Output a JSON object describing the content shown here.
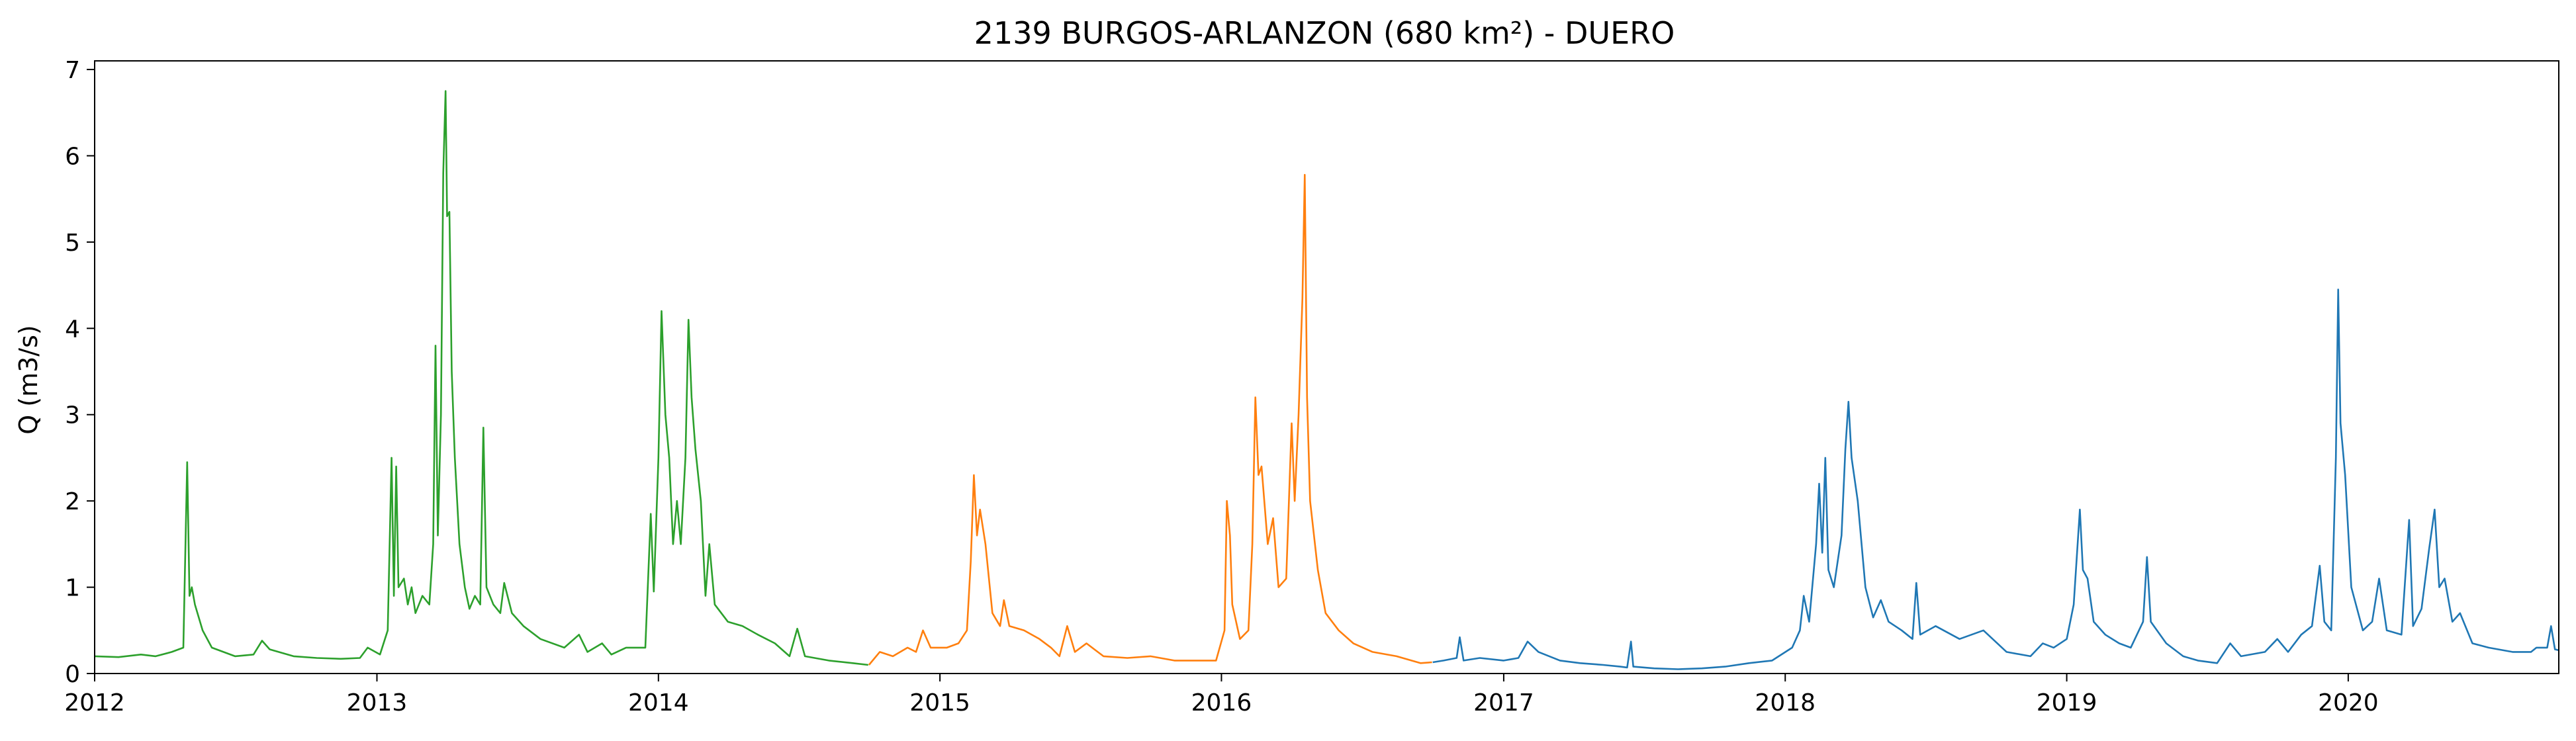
{
  "chart_data": {
    "type": "line",
    "title": "2139 BURGOS-ARLANZON (680 km²) - DUERO",
    "xlabel": "",
    "ylabel": "Q (m3/s)",
    "xlim": [
      "2012-01-01",
      "2020-09-30"
    ],
    "ylim": [
      0,
      7.1
    ],
    "grid": false,
    "x_ticks": [
      "2012",
      "2013",
      "2014",
      "2015",
      "2016",
      "2017",
      "2018",
      "2019",
      "2020"
    ],
    "y_ticks": [
      "0",
      "1",
      "2",
      "3",
      "4",
      "5",
      "6",
      "7"
    ],
    "series": [
      {
        "color": "#2ca02c",
        "points": [
          [
            "2012-01-01",
            0.2
          ],
          [
            "2012-02-01",
            0.19
          ],
          [
            "2012-03-01",
            0.22
          ],
          [
            "2012-03-20",
            0.2
          ],
          [
            "2012-04-10",
            0.25
          ],
          [
            "2012-04-25",
            0.3
          ],
          [
            "2012-04-30",
            2.45
          ],
          [
            "2012-05-03",
            0.9
          ],
          [
            "2012-05-06",
            1.0
          ],
          [
            "2012-05-10",
            0.8
          ],
          [
            "2012-05-20",
            0.5
          ],
          [
            "2012-06-01",
            0.3
          ],
          [
            "2012-07-01",
            0.2
          ],
          [
            "2012-07-25",
            0.22
          ],
          [
            "2012-08-05",
            0.38
          ],
          [
            "2012-08-15",
            0.28
          ],
          [
            "2012-09-15",
            0.2
          ],
          [
            "2012-10-15",
            0.18
          ],
          [
            "2012-11-15",
            0.17
          ],
          [
            "2012-12-10",
            0.18
          ],
          [
            "2012-12-20",
            0.3
          ],
          [
            "2013-01-05",
            0.22
          ],
          [
            "2013-01-15",
            0.5
          ],
          [
            "2013-01-20",
            2.5
          ],
          [
            "2013-01-23",
            0.9
          ],
          [
            "2013-01-26",
            2.4
          ],
          [
            "2013-01-29",
            1.0
          ],
          [
            "2013-02-05",
            1.1
          ],
          [
            "2013-02-10",
            0.8
          ],
          [
            "2013-02-15",
            1.0
          ],
          [
            "2013-02-20",
            0.7
          ],
          [
            "2013-03-01",
            0.9
          ],
          [
            "2013-03-10",
            0.8
          ],
          [
            "2013-03-15",
            1.5
          ],
          [
            "2013-03-18",
            3.8
          ],
          [
            "2013-03-21",
            1.6
          ],
          [
            "2013-03-25",
            3.0
          ],
          [
            "2013-03-28",
            5.8
          ],
          [
            "2013-03-31",
            6.75
          ],
          [
            "2013-04-02",
            5.3
          ],
          [
            "2013-04-05",
            5.35
          ],
          [
            "2013-04-08",
            3.5
          ],
          [
            "2013-04-12",
            2.5
          ],
          [
            "2013-04-18",
            1.5
          ],
          [
            "2013-04-25",
            1.0
          ],
          [
            "2013-05-01",
            0.75
          ],
          [
            "2013-05-08",
            0.9
          ],
          [
            "2013-05-15",
            0.8
          ],
          [
            "2013-05-19",
            2.85
          ],
          [
            "2013-05-23",
            1.0
          ],
          [
            "2013-06-01",
            0.8
          ],
          [
            "2013-06-10",
            0.7
          ],
          [
            "2013-06-15",
            1.05
          ],
          [
            "2013-06-25",
            0.7
          ],
          [
            "2013-07-10",
            0.55
          ],
          [
            "2013-08-01",
            0.4
          ],
          [
            "2013-09-01",
            0.3
          ],
          [
            "2013-09-20",
            0.45
          ],
          [
            "2013-10-01",
            0.25
          ],
          [
            "2013-10-20",
            0.35
          ],
          [
            "2013-11-01",
            0.22
          ],
          [
            "2013-11-20",
            0.3
          ],
          [
            "2013-12-15",
            0.3
          ],
          [
            "2013-12-22",
            1.85
          ],
          [
            "2013-12-26",
            0.95
          ],
          [
            "2014-01-01",
            2.5
          ],
          [
            "2014-01-05",
            4.2
          ],
          [
            "2014-01-10",
            3.0
          ],
          [
            "2014-01-15",
            2.5
          ],
          [
            "2014-01-20",
            1.5
          ],
          [
            "2014-01-25",
            2.0
          ],
          [
            "2014-01-30",
            1.5
          ],
          [
            "2014-02-05",
            2.5
          ],
          [
            "2014-02-09",
            4.1
          ],
          [
            "2014-02-13",
            3.2
          ],
          [
            "2014-02-18",
            2.6
          ],
          [
            "2014-02-25",
            2.0
          ],
          [
            "2014-03-03",
            0.9
          ],
          [
            "2014-03-08",
            1.5
          ],
          [
            "2014-03-15",
            0.8
          ],
          [
            "2014-04-01",
            0.6
          ],
          [
            "2014-04-20",
            0.55
          ],
          [
            "2014-05-10",
            0.45
          ],
          [
            "2014-06-01",
            0.35
          ],
          [
            "2014-06-20",
            0.2
          ],
          [
            "2014-06-30",
            0.52
          ],
          [
            "2014-07-10",
            0.2
          ],
          [
            "2014-08-10",
            0.15
          ],
          [
            "2014-09-10",
            0.12
          ],
          [
            "2014-09-30",
            0.1
          ]
        ]
      },
      {
        "color": "#ff7f0e",
        "points": [
          [
            "2014-10-01",
            0.1
          ],
          [
            "2014-10-15",
            0.25
          ],
          [
            "2014-11-01",
            0.2
          ],
          [
            "2014-11-20",
            0.3
          ],
          [
            "2014-12-01",
            0.25
          ],
          [
            "2014-12-10",
            0.5
          ],
          [
            "2014-12-20",
            0.3
          ],
          [
            "2015-01-10",
            0.3
          ],
          [
            "2015-01-25",
            0.35
          ],
          [
            "2015-02-05",
            0.5
          ],
          [
            "2015-02-10",
            1.3
          ],
          [
            "2015-02-14",
            2.3
          ],
          [
            "2015-02-18",
            1.6
          ],
          [
            "2015-02-22",
            1.9
          ],
          [
            "2015-03-01",
            1.5
          ],
          [
            "2015-03-10",
            0.7
          ],
          [
            "2015-03-20",
            0.55
          ],
          [
            "2015-03-25",
            0.85
          ],
          [
            "2015-04-01",
            0.55
          ],
          [
            "2015-04-20",
            0.5
          ],
          [
            "2015-05-10",
            0.4
          ],
          [
            "2015-05-25",
            0.3
          ],
          [
            "2015-06-05",
            0.2
          ],
          [
            "2015-06-15",
            0.55
          ],
          [
            "2015-06-25",
            0.25
          ],
          [
            "2015-07-10",
            0.35
          ],
          [
            "2015-08-01",
            0.2
          ],
          [
            "2015-09-01",
            0.18
          ],
          [
            "2015-10-01",
            0.2
          ],
          [
            "2015-11-01",
            0.15
          ],
          [
            "2015-12-01",
            0.15
          ],
          [
            "2015-12-25",
            0.15
          ],
          [
            "2016-01-05",
            0.5
          ],
          [
            "2016-01-08",
            2.0
          ],
          [
            "2016-01-12",
            1.6
          ],
          [
            "2016-01-15",
            0.8
          ],
          [
            "2016-01-25",
            0.4
          ],
          [
            "2016-02-05",
            0.5
          ],
          [
            "2016-02-10",
            1.5
          ],
          [
            "2016-02-14",
            3.2
          ],
          [
            "2016-02-18",
            2.3
          ],
          [
            "2016-02-22",
            2.4
          ],
          [
            "2016-03-01",
            1.5
          ],
          [
            "2016-03-08",
            1.8
          ],
          [
            "2016-03-15",
            1.0
          ],
          [
            "2016-03-25",
            1.1
          ],
          [
            "2016-04-01",
            2.9
          ],
          [
            "2016-04-05",
            2.0
          ],
          [
            "2016-04-10",
            3.0
          ],
          [
            "2016-04-15",
            4.35
          ],
          [
            "2016-04-18",
            5.78
          ],
          [
            "2016-04-21",
            3.2
          ],
          [
            "2016-04-25",
            2.0
          ],
          [
            "2016-05-05",
            1.2
          ],
          [
            "2016-05-15",
            0.7
          ],
          [
            "2016-06-01",
            0.5
          ],
          [
            "2016-06-20",
            0.35
          ],
          [
            "2016-07-15",
            0.25
          ],
          [
            "2016-08-15",
            0.2
          ],
          [
            "2016-09-15",
            0.12
          ],
          [
            "2016-09-30",
            0.13
          ]
        ]
      },
      {
        "color": "#1f77b4",
        "points": [
          [
            "2016-10-01",
            0.13
          ],
          [
            "2016-10-15",
            0.15
          ],
          [
            "2016-11-01",
            0.18
          ],
          [
            "2016-11-05",
            0.42
          ],
          [
            "2016-11-10",
            0.15
          ],
          [
            "2016-12-01",
            0.18
          ],
          [
            "2017-01-01",
            0.15
          ],
          [
            "2017-01-20",
            0.18
          ],
          [
            "2017-02-01",
            0.37
          ],
          [
            "2017-02-15",
            0.25
          ],
          [
            "2017-03-15",
            0.15
          ],
          [
            "2017-04-10",
            0.12
          ],
          [
            "2017-05-10",
            0.1
          ],
          [
            "2017-06-01",
            0.08
          ],
          [
            "2017-06-10",
            0.07
          ],
          [
            "2017-06-15",
            0.37
          ],
          [
            "2017-06-18",
            0.08
          ],
          [
            "2017-07-15",
            0.06
          ],
          [
            "2017-08-15",
            0.05
          ],
          [
            "2017-09-15",
            0.06
          ],
          [
            "2017-10-15",
            0.08
          ],
          [
            "2017-11-15",
            0.12
          ],
          [
            "2017-12-15",
            0.15
          ],
          [
            "2018-01-10",
            0.3
          ],
          [
            "2018-01-20",
            0.5
          ],
          [
            "2018-01-25",
            0.9
          ],
          [
            "2018-02-01",
            0.6
          ],
          [
            "2018-02-10",
            1.5
          ],
          [
            "2018-02-14",
            2.2
          ],
          [
            "2018-02-18",
            1.4
          ],
          [
            "2018-02-22",
            2.5
          ],
          [
            "2018-02-26",
            1.2
          ],
          [
            "2018-03-05",
            1.0
          ],
          [
            "2018-03-15",
            1.6
          ],
          [
            "2018-03-20",
            2.6
          ],
          [
            "2018-03-24",
            3.15
          ],
          [
            "2018-03-28",
            2.5
          ],
          [
            "2018-04-05",
            2.0
          ],
          [
            "2018-04-15",
            1.0
          ],
          [
            "2018-04-25",
            0.65
          ],
          [
            "2018-05-05",
            0.85
          ],
          [
            "2018-05-15",
            0.6
          ],
          [
            "2018-06-01",
            0.5
          ],
          [
            "2018-06-15",
            0.4
          ],
          [
            "2018-06-20",
            1.05
          ],
          [
            "2018-06-25",
            0.45
          ],
          [
            "2018-07-15",
            0.55
          ],
          [
            "2018-08-15",
            0.4
          ],
          [
            "2018-09-15",
            0.5
          ],
          [
            "2018-10-15",
            0.25
          ],
          [
            "2018-11-15",
            0.2
          ],
          [
            "2018-12-01",
            0.35
          ],
          [
            "2018-12-15",
            0.3
          ],
          [
            "2019-01-01",
            0.4
          ],
          [
            "2019-01-10",
            0.8
          ],
          [
            "2019-01-18",
            1.9
          ],
          [
            "2019-01-22",
            1.2
          ],
          [
            "2019-01-28",
            1.1
          ],
          [
            "2019-02-05",
            0.6
          ],
          [
            "2019-02-20",
            0.45
          ],
          [
            "2019-03-10",
            0.35
          ],
          [
            "2019-03-25",
            0.3
          ],
          [
            "2019-04-10",
            0.6
          ],
          [
            "2019-04-15",
            1.35
          ],
          [
            "2019-04-20",
            0.6
          ],
          [
            "2019-05-10",
            0.35
          ],
          [
            "2019-06-01",
            0.2
          ],
          [
            "2019-06-20",
            0.15
          ],
          [
            "2019-07-15",
            0.12
          ],
          [
            "2019-08-01",
            0.35
          ],
          [
            "2019-08-15",
            0.2
          ],
          [
            "2019-09-15",
            0.25
          ],
          [
            "2019-10-01",
            0.4
          ],
          [
            "2019-10-15",
            0.25
          ],
          [
            "2019-11-01",
            0.45
          ],
          [
            "2019-11-15",
            0.55
          ],
          [
            "2019-11-25",
            1.25
          ],
          [
            "2019-12-01",
            0.6
          ],
          [
            "2019-12-10",
            0.5
          ],
          [
            "2019-12-16",
            2.5
          ],
          [
            "2019-12-19",
            4.45
          ],
          [
            "2019-12-22",
            2.9
          ],
          [
            "2019-12-28",
            2.3
          ],
          [
            "2020-01-05",
            1.0
          ],
          [
            "2020-01-20",
            0.5
          ],
          [
            "2020-02-01",
            0.6
          ],
          [
            "2020-02-10",
            1.1
          ],
          [
            "2020-02-20",
            0.5
          ],
          [
            "2020-03-10",
            0.45
          ],
          [
            "2020-03-20",
            1.78
          ],
          [
            "2020-03-25",
            0.55
          ],
          [
            "2020-04-05",
            0.75
          ],
          [
            "2020-04-15",
            1.45
          ],
          [
            "2020-04-22",
            1.9
          ],
          [
            "2020-04-28",
            1.0
          ],
          [
            "2020-05-05",
            1.1
          ],
          [
            "2020-05-15",
            0.6
          ],
          [
            "2020-05-25",
            0.7
          ],
          [
            "2020-06-10",
            0.35
          ],
          [
            "2020-07-01",
            0.3
          ],
          [
            "2020-08-01",
            0.25
          ],
          [
            "2020-08-25",
            0.25
          ],
          [
            "2020-09-01",
            0.3
          ],
          [
            "2020-09-15",
            0.3
          ],
          [
            "2020-09-20",
            0.55
          ],
          [
            "2020-09-25",
            0.28
          ],
          [
            "2020-09-30",
            0.27
          ]
        ]
      }
    ]
  }
}
